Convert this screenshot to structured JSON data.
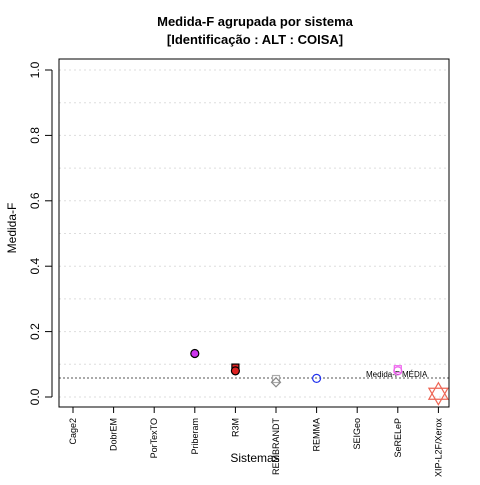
{
  "chart_data": {
    "type": "scatter",
    "title": "Medida-F agrupada por sistema",
    "subtitle": "[Identificação : ALT : COISA]",
    "xlabel": "Sistemas",
    "ylabel": "Medida-F",
    "ylim": [
      0,
      1
    ],
    "yticks": [
      "0.0",
      "0.2",
      "0.4",
      "0.6",
      "0.8",
      "1.0"
    ],
    "ytick_values": [
      0,
      0.2,
      0.4,
      0.6,
      0.8,
      1.0
    ],
    "grid": "horizontal dotted every 0.1",
    "categories": [
      "Cage2",
      "DobrEM",
      "PorTexTO",
      "Priberam",
      "R3M",
      "REMBRANDT",
      "REMMA",
      "SEIGeo",
      "SeRELeP",
      "XIP-L2F/Xerox"
    ],
    "points": [
      {
        "category": "Priberam",
        "value": 0.133,
        "shape": "circle",
        "fill": "#cc33ee",
        "stroke": "#000000"
      },
      {
        "category": "R3M",
        "value": 0.09,
        "shape": "square",
        "fill": "#dd2222",
        "stroke": "#000000"
      },
      {
        "category": "R3M",
        "value": 0.08,
        "shape": "circle",
        "fill": "#dd2222",
        "stroke": "#000000"
      },
      {
        "category": "REMBRANDT",
        "value": 0.055,
        "shape": "square",
        "fill": "none",
        "stroke": "#aaaaaa"
      },
      {
        "category": "REMBRANDT",
        "value": 0.045,
        "shape": "diamond",
        "fill": "none",
        "stroke": "#888888"
      },
      {
        "category": "REMMA",
        "value": 0.057,
        "shape": "circle",
        "fill": "none",
        "stroke": "#2233ee"
      },
      {
        "category": "SeRELeP",
        "value": 0.085,
        "shape": "square",
        "fill": "none",
        "stroke": "#ee66ee"
      },
      {
        "category": "SeRELeP",
        "value": 0.08,
        "shape": "circle",
        "fill": "none",
        "stroke": "#ee66ee"
      },
      {
        "category": "XIP-L2F/Xerox",
        "value": 0.01,
        "shape": "star",
        "fill": "none",
        "stroke": "#ee6655"
      }
    ],
    "mean_line": {
      "value": 0.058,
      "label": "Medida-F MÉDIA"
    }
  }
}
